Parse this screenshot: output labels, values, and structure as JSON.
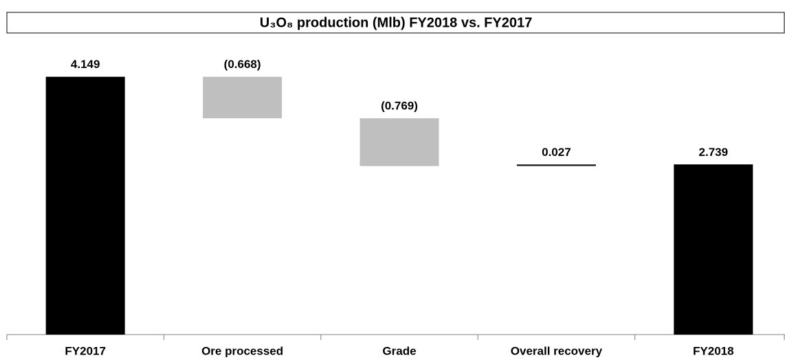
{
  "chart_data": {
    "type": "waterfall",
    "title": "U₃O₈ production (Mlb) FY2018 vs. FY2017",
    "categories": [
      "FY2017",
      "Ore processed",
      "Grade",
      "Overall recovery",
      "FY2018"
    ],
    "values": [
      4.149,
      -0.668,
      -0.769,
      0.027,
      2.739
    ],
    "value_labels": [
      "4.149",
      "(0.668)",
      "(0.769)",
      "0.027",
      "2.739"
    ],
    "totals": [
      true,
      false,
      false,
      false,
      true
    ],
    "colors": [
      "#000000",
      "#bfbfbf",
      "#bfbfbf",
      "#262626",
      "#000000"
    ],
    "ylim": [
      0,
      4.5
    ]
  }
}
